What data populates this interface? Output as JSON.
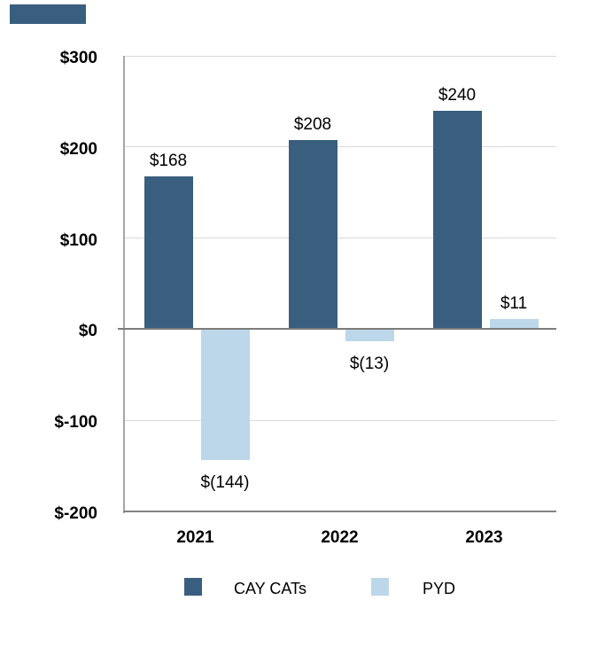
{
  "colors": {
    "series_dark": "#3A5F7E",
    "series_light": "#BCD7E9",
    "gridline": "#D9D9D9",
    "axis_line": "#A6A6A6",
    "zero_line": "#7C7C7C",
    "bottom_axis": "#838383",
    "text": "#000000",
    "background": "#FFFFFF",
    "top_left_artifact_bar": "#3A5F7E"
  },
  "chart_data": {
    "type": "bar",
    "title": "",
    "xlabel": "",
    "ylabel": "",
    "categories": [
      "2021",
      "2022",
      "2023"
    ],
    "series": [
      {
        "name": "CAY CATs",
        "color": "#3A5F7E",
        "values": [
          168,
          208,
          240
        ],
        "data_labels": [
          "$168",
          "$208",
          "$240"
        ]
      },
      {
        "name": "PYD",
        "color": "#BCD7E9",
        "values": [
          -144,
          -13,
          11
        ],
        "data_labels": [
          "$(144)",
          "$(13)",
          "$11"
        ]
      }
    ],
    "y_axis": {
      "ticks": [
        300,
        200,
        100,
        0,
        -100,
        -200
      ],
      "tick_labels": [
        "$300",
        "$200",
        "$100",
        "$0",
        "$-100",
        "$-200"
      ],
      "ylim": [
        -200,
        300
      ]
    },
    "grid": true,
    "legend_position": "bottom",
    "legend": [
      {
        "label": "CAY CATs",
        "color": "#3A5F7E"
      },
      {
        "label": "PYD",
        "color": "#BCD7E9"
      }
    ]
  }
}
